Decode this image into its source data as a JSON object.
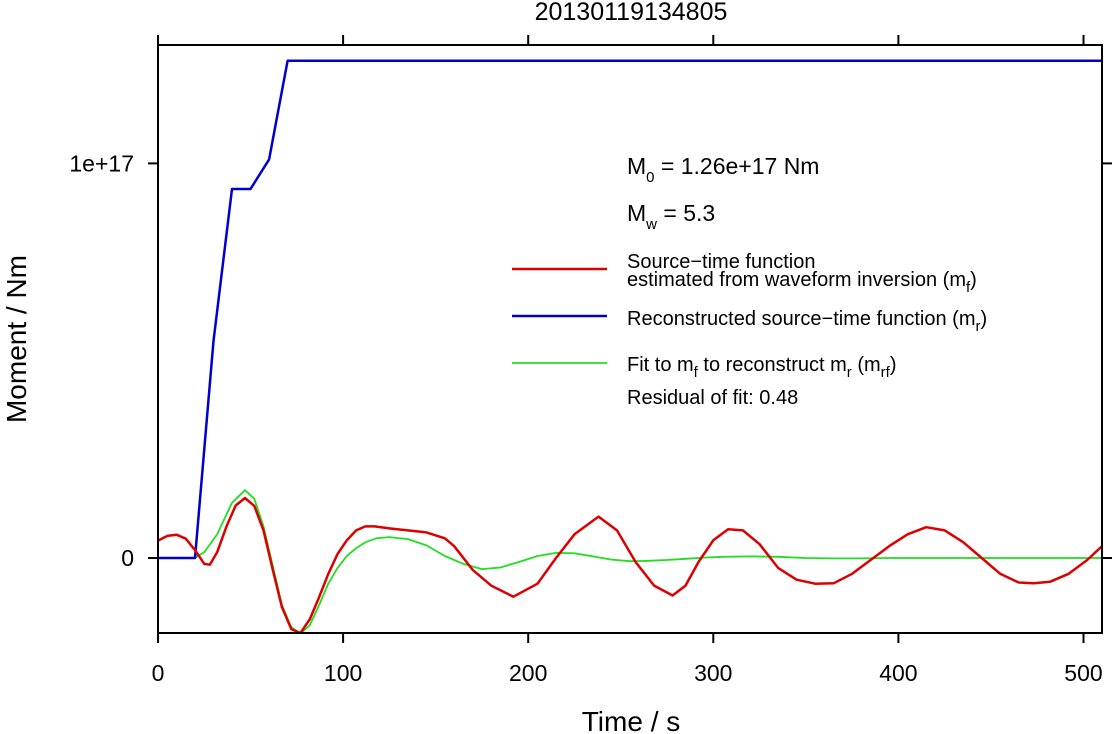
{
  "chart_data": {
    "type": "line",
    "title": "20130119134805",
    "xlabel": "Time / s",
    "ylabel": "Moment / Nm",
    "xlim": [
      0,
      510
    ],
    "ylim": [
      -1.9e+16,
      1.3e+17
    ],
    "x_ticks": [
      0,
      100,
      200,
      300,
      400,
      500
    ],
    "x_tick_labels": [
      "0",
      "100",
      "200",
      "300",
      "400",
      "500"
    ],
    "y_ticks": [
      0,
      1e+17
    ],
    "y_tick_labels": [
      "0",
      "1e+17"
    ],
    "grid": false,
    "legend_position": "right",
    "annotations": {
      "m0_prefix": "M",
      "m0_sub": "0",
      "m0_rest": " = 1.26e+17 Nm",
      "mw_prefix": "M",
      "mw_sub": "w",
      "mw_rest": " = 5.3",
      "residual": "Residual of fit: 0.48"
    },
    "legend": [
      {
        "line1": "Source−time function",
        "line2": "estimated from waveform inversion (m",
        "sub": "f",
        "close": ")",
        "color": "#dd0000"
      },
      {
        "line1": "Reconstructed source−time function (m",
        "sub": "r",
        "close": ")",
        "color": "#0000cc"
      },
      {
        "line1": "Fit to m",
        "sub1": "f",
        "mid": " to reconstruct m",
        "sub2": "r",
        "mid2": " (m",
        "sub3": "rf",
        "close": ")",
        "color": "#22dd22"
      }
    ],
    "series": [
      {
        "name": "Source−time function estimated from waveform inversion (mf)",
        "color": "#dd0000",
        "x": [
          0,
          5,
          10,
          15,
          20,
          25,
          28,
          32,
          37,
          42,
          47,
          52,
          57,
          62,
          67,
          72,
          77,
          82,
          87,
          92,
          97,
          102,
          107,
          112,
          117,
          125,
          135,
          145,
          155,
          160,
          165,
          170,
          180,
          192,
          205,
          215,
          225,
          238,
          248,
          258,
          268,
          278,
          285,
          292,
          300,
          308,
          316,
          325,
          335,
          345,
          355,
          365,
          375,
          385,
          395,
          405,
          415,
          425,
          435,
          445,
          455,
          465,
          473,
          482,
          492,
          502,
          510
        ],
        "y": [
          4400000000000000.0,
          5600000000000000.0,
          5900000000000000.0,
          4900000000000000.0,
          2000000000000000.0,
          -1500000000000000.0,
          -1700000000000000.0,
          1500000000000000.0,
          8000000000000000.0,
          1.33e+16,
          1.52e+16,
          1.32e+16,
          7000000000000000.0,
          -3000000000000000.0,
          -1.25e+16,
          -1.8e+16,
          -1.9e+16,
          -1.55e+16,
          -1e+16,
          -4000000000000000.0,
          1000000000000000.0,
          4500000000000000.0,
          7000000000000000.0,
          8000000000000000.0,
          8000000000000000.0,
          7500000000000000.0,
          7000000000000000.0,
          6500000000000000.0,
          5000000000000000.0,
          3000000000000000.0,
          0.0,
          -3000000000000000.0,
          -7000000000000000.0,
          -9800000000000000.0,
          -6500000000000000.0,
          0.0,
          6000000000000000.0,
          1.05e+16,
          7000000000000000.0,
          -1000000000000000.0,
          -7000000000000000.0,
          -9500000000000000.0,
          -7000000000000000.0,
          -1000000000000000.0,
          4500000000000000.0,
          7300000000000000.0,
          7000000000000000.0,
          3500000000000000.0,
          -2500000000000000.0,
          -5500000000000000.0,
          -6500000000000000.0,
          -6400000000000000.0,
          -4000000000000000.0,
          -500000000000000.0,
          3000000000000000.0,
          6000000000000000.0,
          7800000000000000.0,
          7000000000000000.0,
          4000000000000000.0,
          0.0,
          -4000000000000000.0,
          -6200000000000000.0,
          -6400000000000000.0,
          -6000000000000000.0,
          -4000000000000000.0,
          -500000000000000.0,
          3000000000000000.0
        ]
      },
      {
        "name": "Reconstructed source−time function (mr)",
        "color": "#0000cc",
        "x": [
          0,
          20,
          30,
          40,
          50,
          60,
          70,
          510
        ],
        "y": [
          0,
          0,
          5.5e+16,
          9.35e+16,
          9.35e+16,
          1.01e+17,
          1.26e+17,
          1.26e+17
        ]
      },
      {
        "name": "Fit to mf to reconstruct mr (mrf)",
        "color": "#22dd22",
        "x": [
          0,
          20,
          25,
          32,
          40,
          47,
          52,
          57,
          62,
          67,
          72,
          77,
          82,
          87,
          92,
          97,
          102,
          107,
          112,
          118,
          125,
          135,
          145,
          155,
          165,
          175,
          185,
          195,
          205,
          215,
          225,
          235,
          245,
          255,
          265,
          275,
          285,
          295,
          305,
          320,
          335,
          350,
          365,
          380,
          395,
          410,
          430,
          460,
          510
        ],
        "y": [
          0,
          0,
          1500000000000000.0,
          6000000000000000.0,
          1.4e+16,
          1.72e+16,
          1.5e+16,
          8000000000000000.0,
          -2000000000000000.0,
          -1.2e+16,
          -1.75e+16,
          -1.92e+16,
          -1.7e+16,
          -1.2e+16,
          -6500000000000000.0,
          -2500000000000000.0,
          500000000000000.0,
          2500000000000000.0,
          4000000000000000.0,
          5000000000000000.0,
          5300000000000000.0,
          4800000000000000.0,
          3200000000000000.0,
          500000000000000.0,
          -1500000000000000.0,
          -2800000000000000.0,
          -2400000000000000.0,
          -1000000000000000.0,
          500000000000000.0,
          1300000000000000.0,
          1200000000000000.0,
          400000000000000.0,
          -400000000000000.0,
          -800000000000000.0,
          -700000000000000.0,
          -500000000000000.0,
          -200000000000000.0,
          100000000000000.0,
          300000000000000.0,
          400000000000000.0,
          300000000000000.0,
          0.0,
          -100000000000000.0,
          -100000000000000.0,
          0.0,
          0.0,
          0.0,
          0.0,
          0.0
        ]
      }
    ]
  }
}
